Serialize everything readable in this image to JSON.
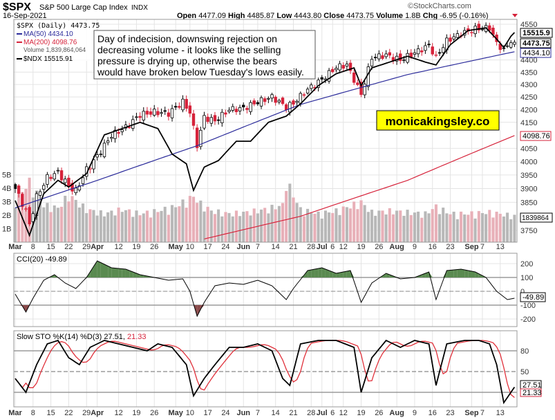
{
  "header": {
    "symbol": "$SPX",
    "name": "S&P 500 Large Cap Index",
    "exchange": "INDX",
    "date": "16-Sep-2021",
    "watermark": "©StockCharts.com",
    "open_label": "Open",
    "open": "4477.09",
    "high_label": "High",
    "high": "4485.87",
    "low_label": "Low",
    "low": "4443.80",
    "close_label": "Close",
    "close": "4473.75",
    "volume_label": "Volume",
    "volume": "1.8B",
    "chg_label": "Chg",
    "chg": "-6.95 (-0.16%)"
  },
  "legend": {
    "price": "$SPX (Daily) 4473.75",
    "ma50": "MA(50) 4434.10",
    "ma200": "MA(200) 4098.76",
    "volume": "Volume 1,839,864,064",
    "ndx": "$NDX 15515.91"
  },
  "annotation": {
    "lines": [
      "Day of indecision, downswing rejection on",
      "decreasing volume - it looks like the selling",
      "pressure is drying up, otherwise the bears",
      "would have broken below Tuesday's lows easily."
    ],
    "brand": "monicakingsley.co"
  },
  "colors": {
    "up": "#ffffff",
    "down": "#d6223a",
    "ma50": "#2a2a9a",
    "ma200": "#d6223a",
    "ndx": "#000000",
    "cci_pos": "#5a8a50",
    "cci_neg": "#8a4a4a",
    "vol_up": "#b8b8b8",
    "vol_down": "#e8b0b8",
    "brand_bg": "#ffff00"
  },
  "chart_data": [
    {
      "type": "candlestick",
      "title": "$SPX (Daily)",
      "x_ticks": [
        {
          "i": 0,
          "l": "Mar",
          "b": true
        },
        {
          "i": 5,
          "l": "8"
        },
        {
          "i": 10,
          "l": "15"
        },
        {
          "i": 15,
          "l": "22"
        },
        {
          "i": 20,
          "l": "29"
        },
        {
          "i": 23,
          "l": "Apr",
          "b": true
        },
        {
          "i": 29,
          "l": "12"
        },
        {
          "i": 34,
          "l": "19"
        },
        {
          "i": 39,
          "l": "26"
        },
        {
          "i": 45,
          "l": "May",
          "b": true
        },
        {
          "i": 49,
          "l": "10"
        },
        {
          "i": 54,
          "l": "17"
        },
        {
          "i": 59,
          "l": "24"
        },
        {
          "i": 64,
          "l": "Jun",
          "b": true
        },
        {
          "i": 68,
          "l": "7"
        },
        {
          "i": 73,
          "l": "14"
        },
        {
          "i": 78,
          "l": "21"
        },
        {
          "i": 83,
          "l": "28"
        },
        {
          "i": 86,
          "l": "Jul",
          "b": true
        },
        {
          "i": 89,
          "l": "6"
        },
        {
          "i": 92,
          "l": "12"
        },
        {
          "i": 97,
          "l": "19"
        },
        {
          "i": 102,
          "l": "26"
        },
        {
          "i": 107,
          "l": "Aug",
          "b": true
        },
        {
          "i": 112,
          "l": "9"
        },
        {
          "i": 117,
          "l": "16"
        },
        {
          "i": 122,
          "l": "23"
        },
        {
          "i": 128,
          "l": "Sep",
          "b": true
        },
        {
          "i": 131,
          "l": "7"
        },
        {
          "i": 136,
          "l": "13"
        }
      ],
      "y_ticks": [
        4550,
        4400,
        4350,
        4300,
        4250,
        4200,
        4150,
        4050,
        4000,
        3950,
        3900,
        3850,
        3750
      ],
      "ylim": [
        3700,
        4560
      ],
      "days": 141,
      "close_anchors": [
        [
          0,
          3900
        ],
        [
          3,
          3820
        ],
        [
          4,
          3770
        ],
        [
          6,
          3870
        ],
        [
          9,
          3940
        ],
        [
          12,
          3960
        ],
        [
          15,
          3910
        ],
        [
          17,
          3890
        ],
        [
          20,
          3970
        ],
        [
          23,
          4020
        ],
        [
          27,
          4100
        ],
        [
          31,
          4130
        ],
        [
          35,
          4180
        ],
        [
          39,
          4190
        ],
        [
          43,
          4185
        ],
        [
          47,
          4230
        ],
        [
          49,
          4190
        ],
        [
          51,
          4063
        ],
        [
          53,
          4170
        ],
        [
          56,
          4155
        ],
        [
          60,
          4200
        ],
        [
          64,
          4205
        ],
        [
          68,
          4230
        ],
        [
          72,
          4250
        ],
        [
          76,
          4210
        ],
        [
          78,
          4225
        ],
        [
          82,
          4280
        ],
        [
          86,
          4320
        ],
        [
          90,
          4370
        ],
        [
          93,
          4380
        ],
        [
          97,
          4260
        ],
        [
          100,
          4410
        ],
        [
          104,
          4420
        ],
        [
          108,
          4400
        ],
        [
          112,
          4430
        ],
        [
          116,
          4460
        ],
        [
          118,
          4410
        ],
        [
          121,
          4480
        ],
        [
          125,
          4510
        ],
        [
          129,
          4530
        ],
        [
          133,
          4535
        ],
        [
          135,
          4470
        ],
        [
          137,
          4440
        ],
        [
          139,
          4480
        ],
        [
          140,
          4473.75
        ]
      ],
      "ma50_anchors": [
        [
          0,
          3830
        ],
        [
          23,
          3930
        ],
        [
          51,
          4060
        ],
        [
          80,
          4220
        ],
        [
          110,
          4340
        ],
        [
          140,
          4434.1
        ]
      ],
      "ma200_anchors": [
        [
          53,
          3720
        ],
        [
          80,
          3800
        ],
        [
          110,
          3930
        ],
        [
          140,
          4098.76
        ]
      ],
      "ndx_anchors": [
        [
          0,
          12800
        ],
        [
          4,
          12300
        ],
        [
          8,
          12900
        ],
        [
          12,
          13100
        ],
        [
          15,
          13000
        ],
        [
          20,
          13200
        ],
        [
          25,
          13800
        ],
        [
          30,
          13900
        ],
        [
          35,
          14000
        ],
        [
          40,
          13900
        ],
        [
          44,
          13500
        ],
        [
          48,
          13350
        ],
        [
          50,
          12950
        ],
        [
          53,
          13300
        ],
        [
          57,
          13400
        ],
        [
          62,
          13700
        ],
        [
          66,
          13700
        ],
        [
          71,
          14000
        ],
        [
          76,
          14100
        ],
        [
          80,
          14300
        ],
        [
          85,
          14600
        ],
        [
          90,
          14800
        ],
        [
          95,
          14900
        ],
        [
          97,
          14600
        ],
        [
          100,
          14900
        ],
        [
          105,
          15000
        ],
        [
          110,
          15100
        ],
        [
          115,
          15000
        ],
        [
          118,
          14950
        ],
        [
          122,
          15300
        ],
        [
          127,
          15550
        ],
        [
          132,
          15600
        ],
        [
          135,
          15400
        ],
        [
          137,
          15250
        ],
        [
          139,
          15450
        ],
        [
          140,
          15515.91
        ]
      ],
      "volume_ticks": [
        "5B",
        "4B",
        "3B",
        "2B",
        "1B"
      ],
      "volume_anchors_b": [
        [
          0,
          3.0
        ],
        [
          4,
          4.2
        ],
        [
          8,
          2.6
        ],
        [
          12,
          2.4
        ],
        [
          15,
          3.3
        ],
        [
          20,
          2.3
        ],
        [
          25,
          2.0
        ],
        [
          30,
          2.3
        ],
        [
          35,
          2.0
        ],
        [
          40,
          2.2
        ],
        [
          45,
          2.5
        ],
        [
          50,
          3.2
        ],
        [
          52,
          2.7
        ],
        [
          55,
          2.2
        ],
        [
          60,
          2.0
        ],
        [
          65,
          2.1
        ],
        [
          70,
          2.3
        ],
        [
          75,
          2.6
        ],
        [
          76,
          4.3
        ],
        [
          80,
          2.3
        ],
        [
          85,
          2.0
        ],
        [
          90,
          2.2
        ],
        [
          97,
          2.8
        ],
        [
          100,
          2.1
        ],
        [
          105,
          2.2
        ],
        [
          110,
          2.1
        ],
        [
          115,
          2.0
        ],
        [
          118,
          2.5
        ],
        [
          122,
          2.0
        ],
        [
          127,
          2.0
        ],
        [
          133,
          2.1
        ],
        [
          140,
          1.84
        ]
      ],
      "labels": {
        "ndx": "15515.9",
        "price": "4473.75",
        "ma50": "4434.10",
        "ma200": "4098.76",
        "volume": "1839864"
      }
    },
    {
      "type": "line",
      "title": "CCI(20) -49.89",
      "y_ticks": [
        200,
        100,
        0,
        -100,
        -200
      ],
      "ylim": [
        -250,
        250
      ],
      "anchors": [
        [
          0,
          -20
        ],
        [
          3,
          -150
        ],
        [
          5,
          -50
        ],
        [
          8,
          80
        ],
        [
          11,
          120
        ],
        [
          14,
          60
        ],
        [
          17,
          20
        ],
        [
          20,
          100
        ],
        [
          23,
          220
        ],
        [
          27,
          170
        ],
        [
          31,
          160
        ],
        [
          35,
          120
        ],
        [
          39,
          100
        ],
        [
          43,
          80
        ],
        [
          47,
          90
        ],
        [
          49,
          0
        ],
        [
          51,
          -180
        ],
        [
          53,
          -80
        ],
        [
          56,
          40
        ],
        [
          60,
          60
        ],
        [
          64,
          50
        ],
        [
          68,
          80
        ],
        [
          72,
          40
        ],
        [
          76,
          -60
        ],
        [
          78,
          20
        ],
        [
          82,
          150
        ],
        [
          86,
          170
        ],
        [
          90,
          130
        ],
        [
          94,
          150
        ],
        [
          97,
          -80
        ],
        [
          100,
          60
        ],
        [
          104,
          130
        ],
        [
          108,
          90
        ],
        [
          112,
          100
        ],
        [
          116,
          140
        ],
        [
          118,
          -60
        ],
        [
          121,
          150
        ],
        [
          125,
          160
        ],
        [
          129,
          140
        ],
        [
          132,
          100
        ],
        [
          135,
          0
        ],
        [
          138,
          -60
        ],
        [
          140,
          -49.89
        ]
      ],
      "last_label": "-49.89"
    },
    {
      "type": "line",
      "title_prefix": "Slow STO %K(14) %D(3) 27.51,",
      "title_d": "21.33",
      "y_ticks": [
        80,
        50
      ],
      "ylim": [
        0,
        100
      ],
      "k_anchors": [
        [
          0,
          40
        ],
        [
          3,
          20
        ],
        [
          6,
          60
        ],
        [
          9,
          90
        ],
        [
          12,
          95
        ],
        [
          15,
          70
        ],
        [
          18,
          60
        ],
        [
          21,
          85
        ],
        [
          25,
          95
        ],
        [
          29,
          90
        ],
        [
          33,
          85
        ],
        [
          37,
          80
        ],
        [
          40,
          90
        ],
        [
          44,
          85
        ],
        [
          48,
          60
        ],
        [
          50,
          15
        ],
        [
          53,
          40
        ],
        [
          56,
          60
        ],
        [
          60,
          85
        ],
        [
          64,
          85
        ],
        [
          68,
          90
        ],
        [
          72,
          80
        ],
        [
          75,
          40
        ],
        [
          77,
          30
        ],
        [
          80,
          90
        ],
        [
          85,
          95
        ],
        [
          90,
          95
        ],
        [
          95,
          85
        ],
        [
          97,
          20
        ],
        [
          100,
          70
        ],
        [
          104,
          95
        ],
        [
          108,
          85
        ],
        [
          112,
          95
        ],
        [
          116,
          90
        ],
        [
          118,
          30
        ],
        [
          121,
          90
        ],
        [
          126,
          95
        ],
        [
          130,
          95
        ],
        [
          133,
          90
        ],
        [
          135,
          60
        ],
        [
          137,
          5
        ],
        [
          139,
          20
        ],
        [
          140,
          27.51
        ]
      ],
      "k_label": "27.51",
      "d_label": "21.33"
    }
  ]
}
